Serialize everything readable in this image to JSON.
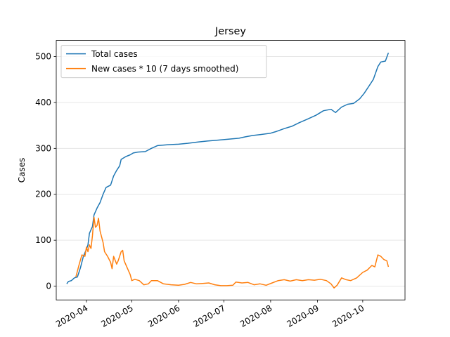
{
  "chart_data": {
    "type": "line",
    "title": "Jersey",
    "xlabel": "",
    "ylabel": "Cases",
    "x_ticks": [
      "2020-04",
      "2020-05",
      "2020-06",
      "2020-07",
      "2020-08",
      "2020-09",
      "2020-10"
    ],
    "y_ticks": [
      0,
      100,
      200,
      300,
      400,
      500
    ],
    "xlim": [
      "2020-03-12",
      "2020-10-29"
    ],
    "ylim": [
      -30,
      535
    ],
    "grid": "horizontal",
    "legend": "top-left",
    "series": [
      {
        "name": "Total cases",
        "color": "#1f77b4",
        "points": [
          [
            "2020-03-19",
            5
          ],
          [
            "2020-03-20",
            10
          ],
          [
            "2020-03-22",
            12
          ],
          [
            "2020-03-24",
            18
          ],
          [
            "2020-03-26",
            20
          ],
          [
            "2020-03-28",
            40
          ],
          [
            "2020-03-30",
            65
          ],
          [
            "2020-04-01",
            80
          ],
          [
            "2020-04-02",
            90
          ],
          [
            "2020-04-03",
            115
          ],
          [
            "2020-04-05",
            130
          ],
          [
            "2020-04-06",
            155
          ],
          [
            "2020-04-08",
            170
          ],
          [
            "2020-04-10",
            182
          ],
          [
            "2020-04-12",
            200
          ],
          [
            "2020-04-14",
            215
          ],
          [
            "2020-04-17",
            220
          ],
          [
            "2020-04-19",
            240
          ],
          [
            "2020-04-21",
            252
          ],
          [
            "2020-04-23",
            262
          ],
          [
            "2020-04-24",
            276
          ],
          [
            "2020-04-27",
            282
          ],
          [
            "2020-04-30",
            286
          ],
          [
            "2020-05-02",
            290
          ],
          [
            "2020-05-05",
            292
          ],
          [
            "2020-05-10",
            293
          ],
          [
            "2020-05-14",
            300
          ],
          [
            "2020-05-18",
            306
          ],
          [
            "2020-05-25",
            308
          ],
          [
            "2020-06-01",
            309
          ],
          [
            "2020-06-07",
            311
          ],
          [
            "2020-06-14",
            314
          ],
          [
            "2020-06-20",
            316
          ],
          [
            "2020-06-27",
            318
          ],
          [
            "2020-07-04",
            320
          ],
          [
            "2020-07-11",
            322
          ],
          [
            "2020-07-15",
            325
          ],
          [
            "2020-07-20",
            328
          ],
          [
            "2020-07-25",
            330
          ],
          [
            "2020-08-01",
            333
          ],
          [
            "2020-08-05",
            337
          ],
          [
            "2020-08-10",
            343
          ],
          [
            "2020-08-15",
            348
          ],
          [
            "2020-08-20",
            356
          ],
          [
            "2020-08-25",
            363
          ],
          [
            "2020-08-31",
            372
          ],
          [
            "2020-09-05",
            382
          ],
          [
            "2020-09-10",
            385
          ],
          [
            "2020-09-13",
            378
          ],
          [
            "2020-09-17",
            390
          ],
          [
            "2020-09-21",
            396
          ],
          [
            "2020-09-25",
            398
          ],
          [
            "2020-09-29",
            408
          ],
          [
            "2020-10-02",
            420
          ],
          [
            "2020-10-05",
            435
          ],
          [
            "2020-10-08",
            450
          ],
          [
            "2020-10-11",
            478
          ],
          [
            "2020-10-13",
            488
          ],
          [
            "2020-10-16",
            490
          ],
          [
            "2020-10-18",
            508
          ]
        ]
      },
      {
        "name": "New cases * 10 (7 days smoothed)",
        "color": "#ff7f0e",
        "points": [
          [
            "2020-03-25",
            20
          ],
          [
            "2020-03-27",
            45
          ],
          [
            "2020-03-29",
            68
          ],
          [
            "2020-03-31",
            65
          ],
          [
            "2020-04-01",
            85
          ],
          [
            "2020-04-02",
            75
          ],
          [
            "2020-04-03",
            90
          ],
          [
            "2020-04-04",
            82
          ],
          [
            "2020-04-05",
            110
          ],
          [
            "2020-04-06",
            150
          ],
          [
            "2020-04-07",
            128
          ],
          [
            "2020-04-08",
            132
          ],
          [
            "2020-04-09",
            148
          ],
          [
            "2020-04-10",
            120
          ],
          [
            "2020-04-12",
            95
          ],
          [
            "2020-04-13",
            75
          ],
          [
            "2020-04-15",
            65
          ],
          [
            "2020-04-17",
            52
          ],
          [
            "2020-04-18",
            38
          ],
          [
            "2020-04-19",
            65
          ],
          [
            "2020-04-21",
            48
          ],
          [
            "2020-04-22",
            55
          ],
          [
            "2020-04-24",
            75
          ],
          [
            "2020-04-25",
            78
          ],
          [
            "2020-04-26",
            55
          ],
          [
            "2020-04-28",
            40
          ],
          [
            "2020-04-30",
            25
          ],
          [
            "2020-05-01",
            12
          ],
          [
            "2020-05-03",
            15
          ],
          [
            "2020-05-06",
            12
          ],
          [
            "2020-05-09",
            3
          ],
          [
            "2020-05-12",
            5
          ],
          [
            "2020-05-14",
            12
          ],
          [
            "2020-05-18",
            12
          ],
          [
            "2020-05-22",
            5
          ],
          [
            "2020-05-27",
            3
          ],
          [
            "2020-06-01",
            2
          ],
          [
            "2020-06-05",
            4
          ],
          [
            "2020-06-09",
            8
          ],
          [
            "2020-06-13",
            5
          ],
          [
            "2020-06-17",
            6
          ],
          [
            "2020-06-21",
            7
          ],
          [
            "2020-06-25",
            3
          ],
          [
            "2020-06-29",
            1
          ],
          [
            "2020-07-03",
            1
          ],
          [
            "2020-07-07",
            2
          ],
          [
            "2020-07-09",
            9
          ],
          [
            "2020-07-13",
            7
          ],
          [
            "2020-07-17",
            8
          ],
          [
            "2020-07-21",
            3
          ],
          [
            "2020-07-25",
            5
          ],
          [
            "2020-07-29",
            2
          ],
          [
            "2020-08-02",
            7
          ],
          [
            "2020-08-06",
            12
          ],
          [
            "2020-08-10",
            14
          ],
          [
            "2020-08-14",
            11
          ],
          [
            "2020-08-18",
            14
          ],
          [
            "2020-08-22",
            12
          ],
          [
            "2020-08-26",
            14
          ],
          [
            "2020-08-30",
            13
          ],
          [
            "2020-09-03",
            15
          ],
          [
            "2020-09-07",
            12
          ],
          [
            "2020-09-10",
            5
          ],
          [
            "2020-09-12",
            -4
          ],
          [
            "2020-09-14",
            2
          ],
          [
            "2020-09-17",
            18
          ],
          [
            "2020-09-20",
            14
          ],
          [
            "2020-09-23",
            12
          ],
          [
            "2020-09-27",
            18
          ],
          [
            "2020-10-01",
            30
          ],
          [
            "2020-10-04",
            35
          ],
          [
            "2020-10-07",
            45
          ],
          [
            "2020-10-09",
            42
          ],
          [
            "2020-10-11",
            68
          ],
          [
            "2020-10-13",
            65
          ],
          [
            "2020-10-15",
            58
          ],
          [
            "2020-10-17",
            55
          ],
          [
            "2020-10-18",
            42
          ]
        ]
      }
    ]
  }
}
